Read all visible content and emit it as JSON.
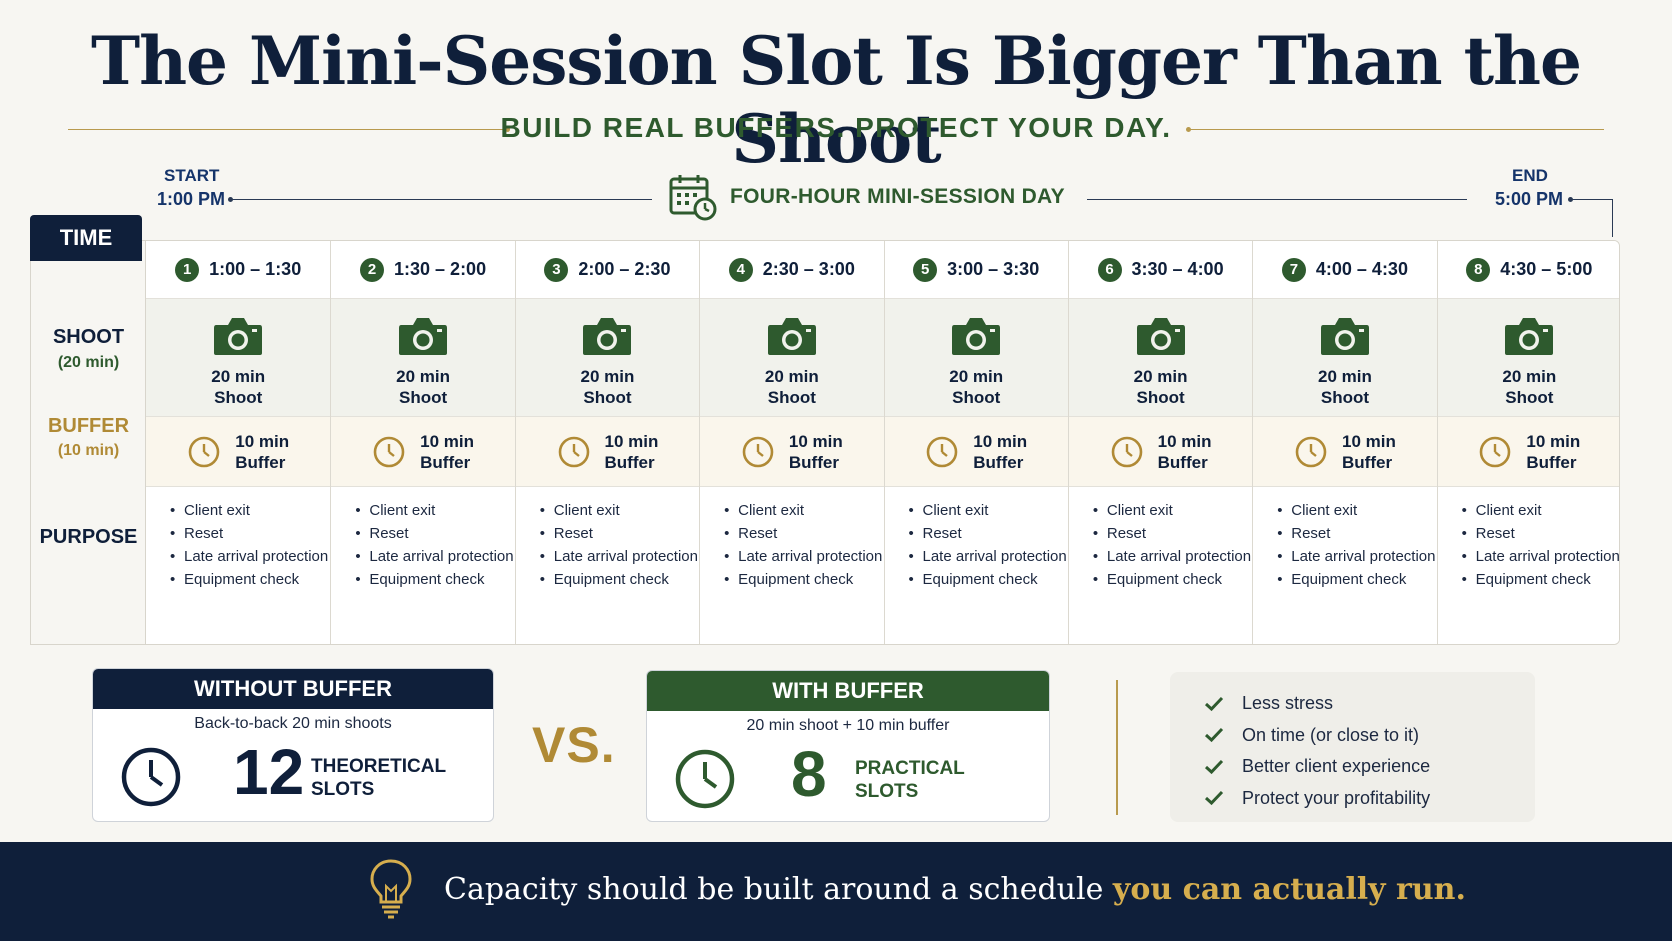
{
  "header": {
    "title": "The Mini-Session Slot Is Bigger Than the Shoot",
    "subtitle": "BUILD REAL BUFFERS. PROTECT YOUR DAY."
  },
  "timeline": {
    "start_label": "START",
    "start_time": "1:00 PM",
    "center_label": "FOUR-HOUR MINI-SESSION DAY",
    "end_label": "END",
    "end_time": "5:00 PM"
  },
  "rows": {
    "time": "TIME",
    "shoot": "SHOOT",
    "shoot_sub": "(20 min)",
    "buffer": "BUFFER",
    "buffer_sub": "(10 min)",
    "purpose": "PURPOSE"
  },
  "slots": [
    {
      "num": "1",
      "range": "1:00 – 1:30"
    },
    {
      "num": "2",
      "range": "1:30 – 2:00"
    },
    {
      "num": "3",
      "range": "2:00 – 2:30"
    },
    {
      "num": "4",
      "range": "2:30 – 3:00"
    },
    {
      "num": "5",
      "range": "3:00 – 3:30"
    },
    {
      "num": "6",
      "range": "3:30 – 4:00"
    },
    {
      "num": "7",
      "range": "4:00 – 4:30"
    },
    {
      "num": "8",
      "range": "4:30 – 5:00"
    }
  ],
  "cell_text": {
    "shoot_line1": "20 min",
    "shoot_line2": "Shoot",
    "buffer_line1": "10 min",
    "buffer_line2": "Buffer",
    "purpose_items": [
      "Client exit",
      "Reset",
      "Late arrival protection",
      "Equipment check"
    ]
  },
  "without_buffer": {
    "title": "WITHOUT BUFFER",
    "sub": "Back-to-back 20 min shoots",
    "count": "12",
    "label_line1": "THEORETICAL",
    "label_line2": "SLOTS"
  },
  "vs": "VS.",
  "with_buffer": {
    "title": "WITH BUFFER",
    "sub": "20 min shoot + 10 min buffer",
    "count": "8",
    "label_line1": "PRACTICAL",
    "label_line2": "SLOTS"
  },
  "benefits": [
    "Less stress",
    "On time (or close to it)",
    "Better client experience",
    "Protect your profitability"
  ],
  "footer": {
    "text_main": "Capacity should be built around a schedule ",
    "text_highlight": "you can actually run."
  },
  "colors": {
    "navy": "#0f1f3a",
    "green": "#2e5a2e",
    "gold": "#b08a35"
  }
}
